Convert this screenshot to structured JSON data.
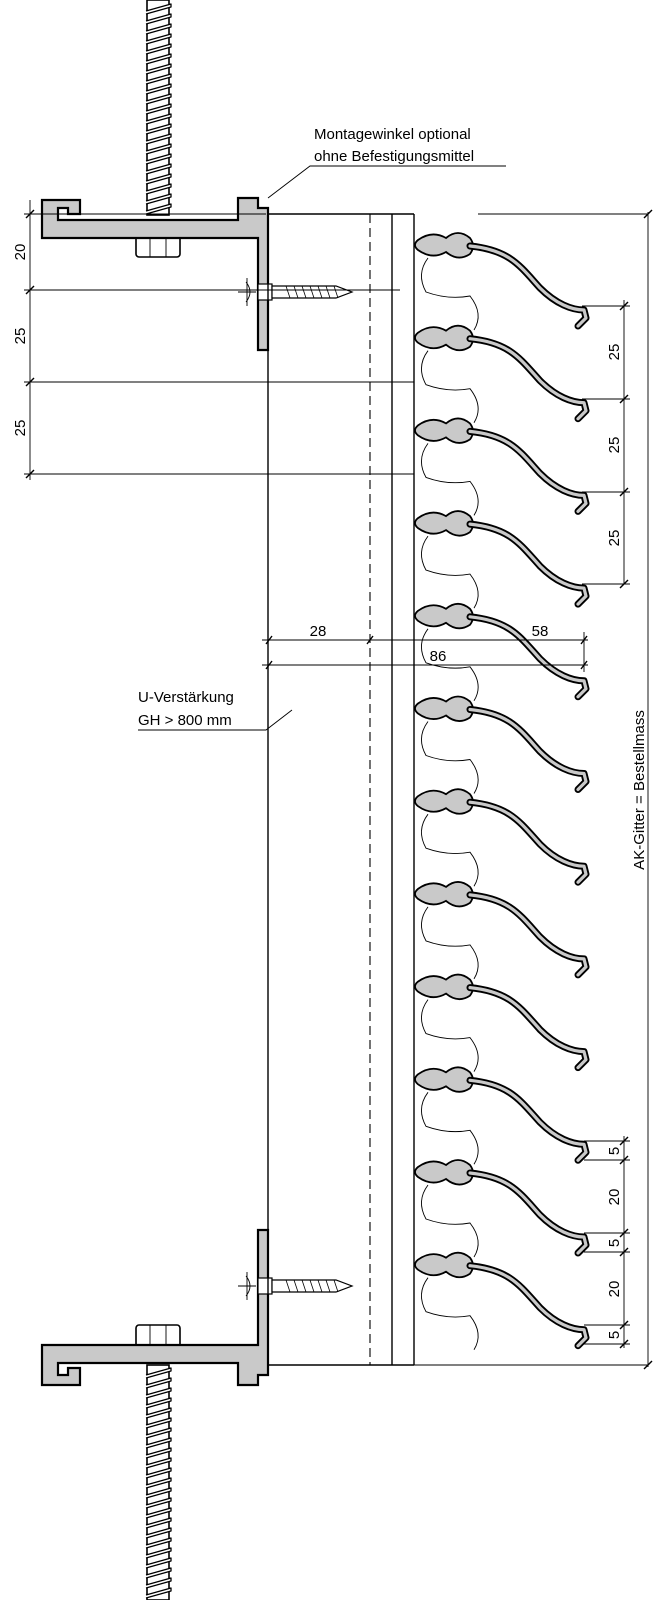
{
  "labels": {
    "mounting_bracket_line1": "Montagewinkel optional",
    "mounting_bracket_line2": "ohne Befestigungsmittel",
    "u_reinforcement_line1": "U-Verstärkung",
    "u_reinforcement_line2": "GH > 800 mm",
    "order_dimension": "AK-Gitter = Bestellmass"
  },
  "dimensions": {
    "left_top": [
      "20",
      "25",
      "25"
    ],
    "right_pitch": [
      "25",
      "25",
      "25"
    ],
    "depth_front": "28",
    "depth_blade": "58",
    "depth_total": "86",
    "bottom_detail": [
      "5",
      "20",
      "5",
      "20",
      "5"
    ]
  },
  "blade_count": 12
}
